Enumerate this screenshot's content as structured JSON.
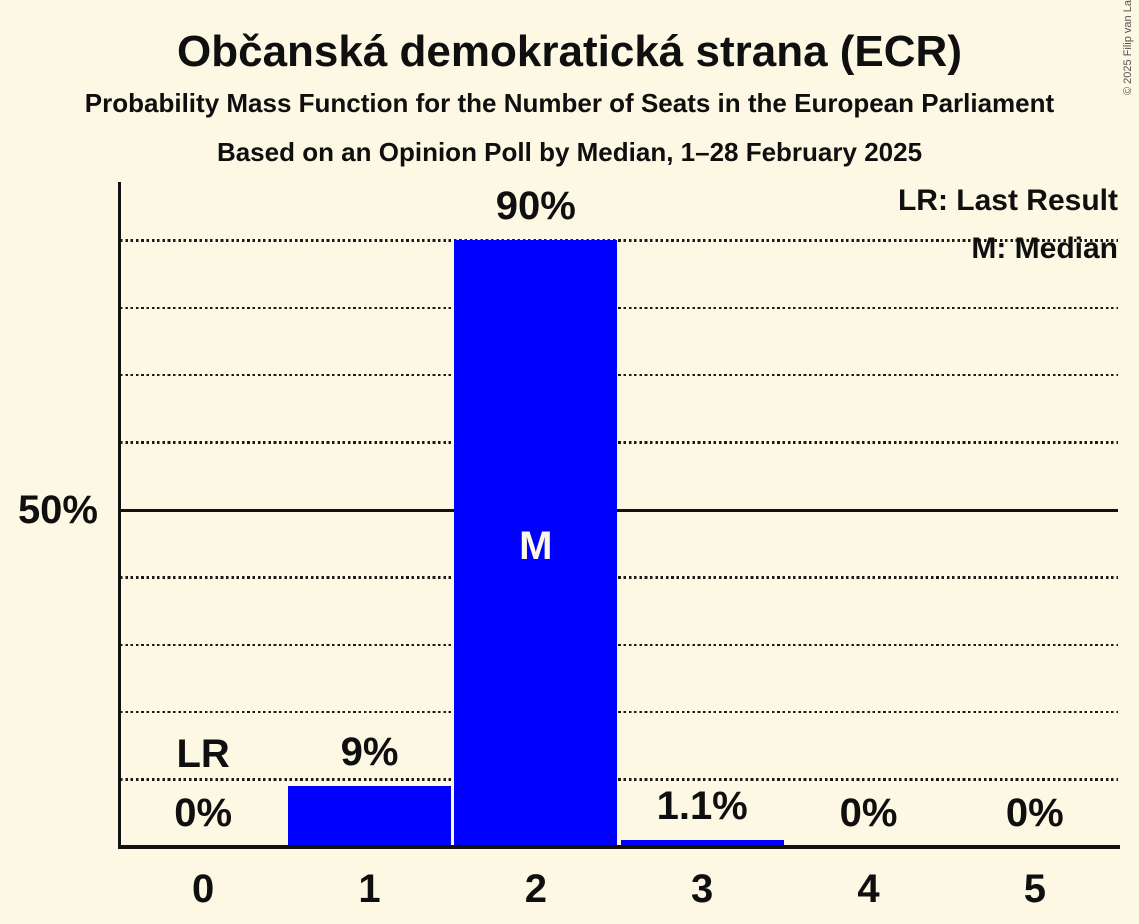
{
  "header": {
    "title": "Občanská demokratická strana (ECR)",
    "subtitle": "Probability Mass Function for the Number of Seats in the European Parliament",
    "poll_line": "Based on an Opinion Poll by Median, 1–28 February 2025"
  },
  "legend": {
    "last_result": "LR: Last Result",
    "median": "M: Median"
  },
  "y_axis": {
    "label_50": "50%"
  },
  "copyright": "© 2025 Filip van Laenen",
  "chart_data": {
    "type": "bar",
    "title": "Probability Mass Function for the Number of Seats in the European Parliament",
    "categories": [
      "0",
      "1",
      "2",
      "3",
      "4",
      "5"
    ],
    "values": [
      0,
      9,
      90,
      1.1,
      0,
      0
    ],
    "bar_labels": [
      "0%",
      "9%",
      "90%",
      "1.1%",
      "0%",
      "0%"
    ],
    "xlabel": "",
    "ylabel": "",
    "ylim": [
      0,
      100
    ],
    "gridlines_pct": [
      10,
      20,
      30,
      40,
      50,
      60,
      70,
      80,
      90
    ],
    "solid_gridline_pct": 50,
    "y_tick_labels": [
      {
        "pct": 50,
        "label": "50%"
      }
    ],
    "grid": "dotted",
    "legend_position": "top-right",
    "annotations": {
      "last_result_marker": "LR",
      "last_result_seat_index": 0,
      "median_marker": "M",
      "median_seat_index": 2
    }
  },
  "colors": {
    "background": "#fcf8e3",
    "bar": "#0000ff",
    "text": "#0f0f0f",
    "axis": "#111111",
    "median_marker_text": "#fcf8e3",
    "copyright": "#555555"
  }
}
